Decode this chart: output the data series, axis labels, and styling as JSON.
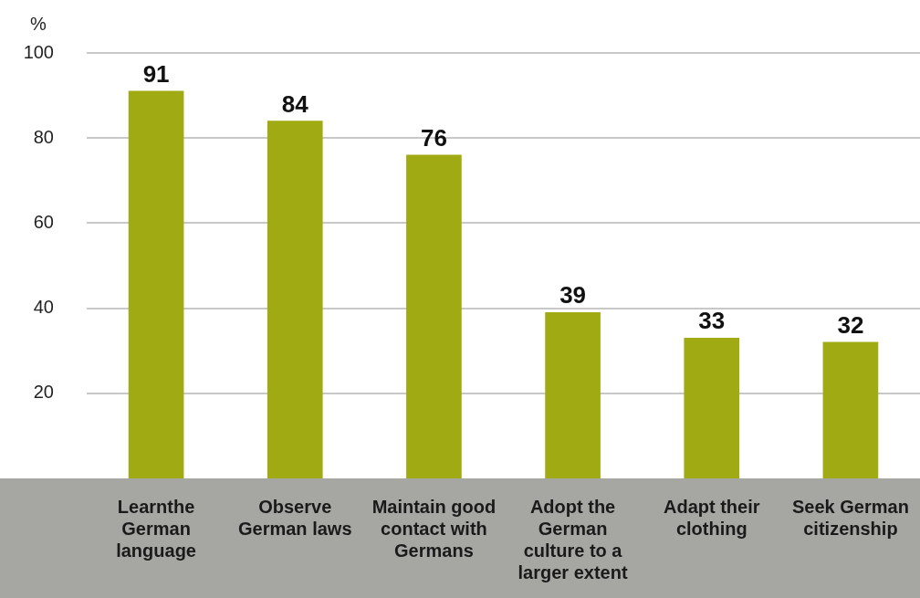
{
  "chart_data": {
    "type": "bar",
    "ylabel": "%",
    "categories": [
      "Learnthe German language",
      "Observe German laws",
      "Maintain good contact with Germans",
      "Adopt the German culture to a larger extent",
      "Adapt their clothing",
      "Seek German citizenship"
    ],
    "values": [
      91,
      84,
      76,
      39,
      33,
      32
    ],
    "color": "#a0aa12",
    "ylim": [
      0,
      100
    ],
    "yticks": [
      20,
      40,
      60,
      80,
      100
    ],
    "grid": "y",
    "data_labels": true,
    "legend": false
  }
}
